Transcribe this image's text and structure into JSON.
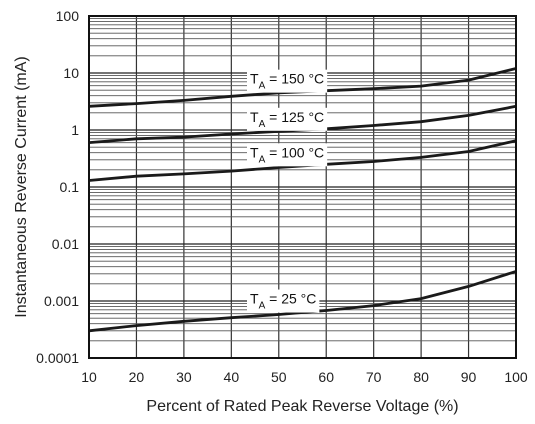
{
  "chart_data": {
    "type": "line",
    "xlabel": "Percent of Rated Peak Reverse Voltage (%)",
    "ylabel": "Instantaneous Reverse Current (mA)",
    "x_scale": "linear",
    "y_scale": "log",
    "xlim": [
      10,
      100
    ],
    "ylim": [
      0.0001,
      100
    ],
    "x_ticks": [
      "10",
      "20",
      "30",
      "40",
      "50",
      "60",
      "70",
      "80",
      "90",
      "100"
    ],
    "y_ticks": [
      "0.0001",
      "0.001",
      "0.01",
      "0.1",
      "1",
      "10",
      "100"
    ],
    "grid": true,
    "series": [
      {
        "label_main": "T",
        "label_sub": "A",
        "label_rest": " = 150 °C",
        "x": [
          10,
          20,
          30,
          40,
          50,
          60,
          70,
          80,
          90,
          100
        ],
        "y": [
          2.6,
          2.9,
          3.3,
          3.9,
          4.5,
          4.9,
          5.3,
          5.9,
          7.5,
          12
        ]
      },
      {
        "label_main": "T",
        "label_sub": "A",
        "label_rest": " = 125 °C",
        "x": [
          10,
          20,
          30,
          40,
          50,
          60,
          70,
          80,
          90,
          100
        ],
        "y": [
          0.6,
          0.7,
          0.75,
          0.85,
          0.95,
          1.05,
          1.2,
          1.4,
          1.8,
          2.6
        ]
      },
      {
        "label_main": "T",
        "label_sub": "A",
        "label_rest": " = 100 °C",
        "x": [
          10,
          20,
          30,
          40,
          50,
          60,
          70,
          80,
          90,
          100
        ],
        "y": [
          0.13,
          0.155,
          0.17,
          0.19,
          0.22,
          0.25,
          0.28,
          0.33,
          0.42,
          0.65
        ]
      },
      {
        "label_main": "T",
        "label_sub": "A",
        "label_rest": " = 25 °C",
        "x": [
          10,
          20,
          30,
          40,
          50,
          60,
          70,
          80,
          90,
          100
        ],
        "y": [
          0.0003,
          0.00037,
          0.00044,
          0.00051,
          0.00058,
          0.00068,
          0.00083,
          0.0011,
          0.0018,
          0.0033
        ]
      }
    ]
  }
}
